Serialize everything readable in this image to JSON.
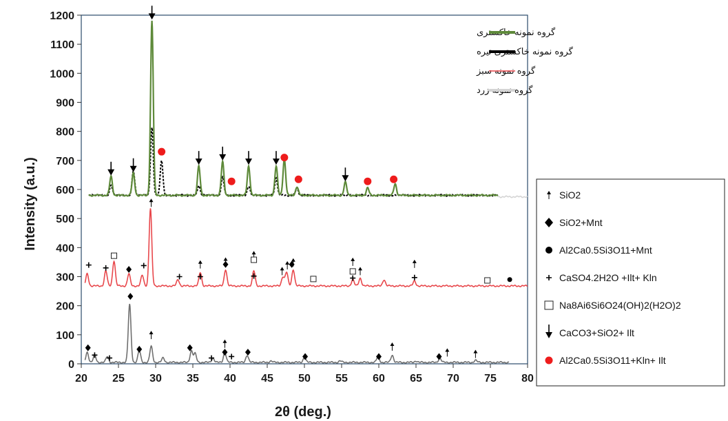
{
  "chart_data": {
    "type": "line",
    "xlabel": "2θ (deg.)",
    "ylabel": "Intensity (a.u.)",
    "xlim": [
      20,
      80
    ],
    "ylim": [
      0,
      1200
    ],
    "x_ticks": [
      20,
      25,
      30,
      35,
      40,
      45,
      50,
      55,
      60,
      65,
      70,
      75,
      80
    ],
    "y_ticks": [
      0,
      100,
      200,
      300,
      400,
      500,
      600,
      700,
      800,
      900,
      1000,
      1100,
      1200
    ],
    "grid": false,
    "legend_placement": "top-right",
    "series": [
      {
        "name": "گروه نمونه خاکستری",
        "color": "#5e8a3a",
        "baseline": 580,
        "x_range": [
          21,
          76
        ],
        "peaks": [
          [
            24.0,
            645
          ],
          [
            27.0,
            655
          ],
          [
            29.5,
            1180
          ],
          [
            35.8,
            680
          ],
          [
            39.0,
            695
          ],
          [
            42.5,
            680
          ],
          [
            46.2,
            680
          ],
          [
            47.3,
            705
          ],
          [
            49.0,
            610
          ],
          [
            55.5,
            625
          ],
          [
            58.5,
            605
          ],
          [
            62.2,
            620
          ]
        ]
      },
      {
        "name": "گروه نمونه خاکستری تیره",
        "color": "#000000",
        "dashed": true,
        "baseline": 580,
        "x_range": [
          21,
          76
        ],
        "peaks": [
          [
            24.0,
            615
          ],
          [
            27.0,
            665
          ],
          [
            29.5,
            815
          ],
          [
            30.8,
            700
          ],
          [
            35.8,
            615
          ],
          [
            39.0,
            645
          ],
          [
            42.5,
            610
          ],
          [
            46.2,
            640
          ],
          [
            49.0,
            605
          ]
        ]
      },
      {
        "name": "گروه نمونه سبز",
        "color": "#e8474b",
        "baseline": 268,
        "x_range": [
          20.5,
          80
        ],
        "peaks": [
          [
            20.8,
            310
          ],
          [
            23.3,
            320
          ],
          [
            24.4,
            355
          ],
          [
            26.4,
            310
          ],
          [
            28.2,
            305
          ],
          [
            29.3,
            535
          ],
          [
            33.0,
            290
          ],
          [
            36.0,
            315
          ],
          [
            39.4,
            325
          ],
          [
            43.2,
            320
          ],
          [
            47.1,
            300
          ],
          [
            47.6,
            315
          ],
          [
            48.5,
            325
          ],
          [
            56.5,
            290
          ],
          [
            57.5,
            295
          ],
          [
            60.7,
            290
          ],
          [
            64.8,
            285
          ]
        ]
      },
      {
        "name": "گروه نمونه زرد",
        "color": "#d4d4d4",
        "baseline": 575,
        "x_range": [
          76,
          80
        ]
      },
      {
        "name": "",
        "color": "#6f6f6f",
        "baseline": 5,
        "x_range": [
          20.5,
          77.5
        ],
        "peaks": [
          [
            20.8,
            40
          ],
          [
            21.8,
            30
          ],
          [
            23.5,
            25
          ],
          [
            26.5,
            205
          ],
          [
            27.8,
            45
          ],
          [
            29.4,
            60
          ],
          [
            31.0,
            20
          ],
          [
            34.8,
            45
          ],
          [
            35.3,
            35
          ],
          [
            37.7,
            20
          ],
          [
            39.3,
            40
          ],
          [
            42.3,
            30
          ],
          [
            45.5,
            10
          ],
          [
            50.0,
            22
          ],
          [
            54.8,
            10
          ],
          [
            59.9,
            25
          ],
          [
            61.8,
            30
          ],
          [
            65.0,
            10
          ],
          [
            68.2,
            20
          ],
          [
            73.0,
            12
          ]
        ]
      }
    ],
    "markers": {
      "arrow_down": [
        [
          24.0,
          648
        ],
        [
          27.0,
          660
        ],
        [
          29.5,
          1185
        ],
        [
          35.8,
          685
        ],
        [
          39.0,
          700
        ],
        [
          42.5,
          685
        ],
        [
          46.2,
          685
        ],
        [
          55.5,
          628
        ]
      ],
      "red_dot": [
        [
          30.8,
          730
        ],
        [
          40.2,
          628
        ],
        [
          47.3,
          710
        ],
        [
          49.2,
          635
        ],
        [
          58.5,
          628
        ],
        [
          62.0,
          635
        ]
      ],
      "arrow_up": [
        [
          29.4,
          540
        ],
        [
          36.0,
          328
        ],
        [
          39.4,
          338
        ],
        [
          43.2,
          360
        ],
        [
          47.0,
          305
        ],
        [
          47.7,
          325
        ],
        [
          48.5,
          335
        ],
        [
          56.5,
          337
        ],
        [
          57.5,
          305
        ],
        [
          64.8,
          330
        ],
        [
          29.4,
          85
        ],
        [
          39.3,
          55
        ],
        [
          61.8,
          45
        ],
        [
          69.2,
          25
        ],
        [
          73.0,
          20
        ]
      ],
      "diamond": [
        [
          26.4,
          325
        ],
        [
          39.4,
          342
        ],
        [
          48.3,
          342
        ],
        [
          26.6,
          232
        ],
        [
          20.9,
          55
        ],
        [
          27.8,
          50
        ],
        [
          34.6,
          55
        ],
        [
          39.3,
          40
        ],
        [
          42.4,
          40
        ],
        [
          50.1,
          25
        ],
        [
          60.0,
          25
        ],
        [
          68.1,
          25
        ]
      ],
      "plus": [
        [
          21.0,
          340
        ],
        [
          23.3,
          330
        ],
        [
          28.4,
          338
        ],
        [
          33.2,
          300
        ],
        [
          36.0,
          300
        ],
        [
          43.2,
          302
        ],
        [
          56.5,
          295
        ],
        [
          64.8,
          297
        ],
        [
          21.8,
          30
        ],
        [
          23.8,
          20
        ],
        [
          37.5,
          20
        ],
        [
          40.2,
          25
        ]
      ],
      "open_square": [
        [
          24.4,
          372
        ],
        [
          43.2,
          358
        ],
        [
          51.2,
          292
        ],
        [
          56.5,
          318
        ],
        [
          74.6,
          287
        ]
      ],
      "dot_black": [
        [
          77.6,
          290
        ]
      ]
    },
    "key_entries": [
      {
        "symbol": "arrow-up",
        "label": "SiO2"
      },
      {
        "symbol": "diamond",
        "label": "SiO2+Mnt"
      },
      {
        "symbol": "dot-black",
        "label": "Al2Ca0.5Si3O11+Mnt"
      },
      {
        "symbol": "plus",
        "label": "CaSO4.2H2O +Ilt+ Kln"
      },
      {
        "symbol": "open-square",
        "label": "Na8Ai6Si6O24(OH)2(H2O)2"
      },
      {
        "symbol": "arrow-down",
        "label": "CaCO3+SiO2+ Ilt"
      },
      {
        "symbol": "red-dot",
        "label": "Al2Ca0.5Si3O11+Kln+ Ilt"
      }
    ]
  }
}
